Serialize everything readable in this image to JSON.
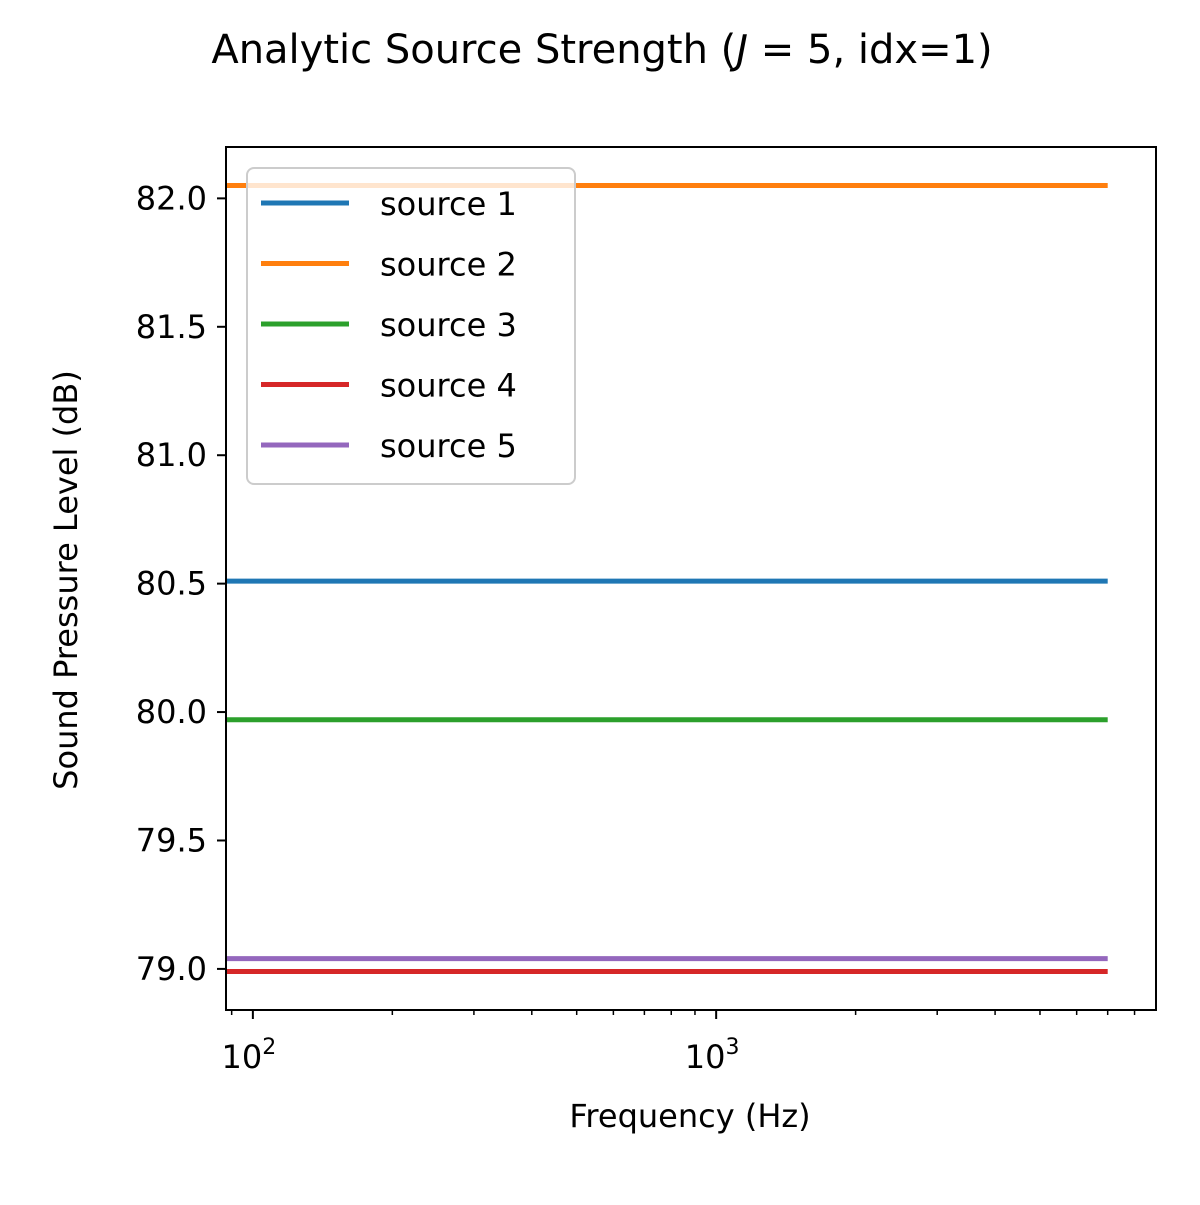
{
  "chart_data": {
    "type": "line",
    "title_parts": [
      "Analytic Source Strength (",
      "J",
      " = 5, idx=1)"
    ],
    "xlabel": "Frequency (Hz)",
    "ylabel": "Sound Pressure Level (dB)",
    "x_scale": "log",
    "xlim": [
      87.5,
      8900
    ],
    "ylim": [
      78.84,
      82.2
    ],
    "x_ticks": [
      {
        "value": 100,
        "base": "10",
        "exp": "2"
      },
      {
        "value": 1000,
        "base": "10",
        "exp": "3"
      }
    ],
    "y_ticks": [
      {
        "value": 79.0,
        "label": "79.0"
      },
      {
        "value": 79.5,
        "label": "79.5"
      },
      {
        "value": 80.0,
        "label": "80.0"
      },
      {
        "value": 80.5,
        "label": "80.5"
      },
      {
        "value": 81.0,
        "label": "81.0"
      },
      {
        "value": 81.5,
        "label": "81.5"
      },
      {
        "value": 82.0,
        "label": "82.0"
      }
    ],
    "grid": false,
    "legend_position": "upper-left",
    "series": [
      {
        "name": "source 1",
        "color": "#1f77b4",
        "x": [
          87.5,
          7000
        ],
        "y": [
          80.51,
          80.51
        ]
      },
      {
        "name": "source 2",
        "color": "#ff7f0e",
        "x": [
          87.5,
          7000
        ],
        "y": [
          82.05,
          82.05
        ]
      },
      {
        "name": "source 3",
        "color": "#2ca02c",
        "x": [
          87.5,
          7000
        ],
        "y": [
          79.97,
          79.97
        ]
      },
      {
        "name": "source 4",
        "color": "#d62728",
        "x": [
          87.5,
          7000
        ],
        "y": [
          78.99,
          78.99
        ]
      },
      {
        "name": "source 5",
        "color": "#9467bd",
        "x": [
          87.5,
          7000
        ],
        "y": [
          79.04,
          79.04
        ]
      }
    ]
  }
}
